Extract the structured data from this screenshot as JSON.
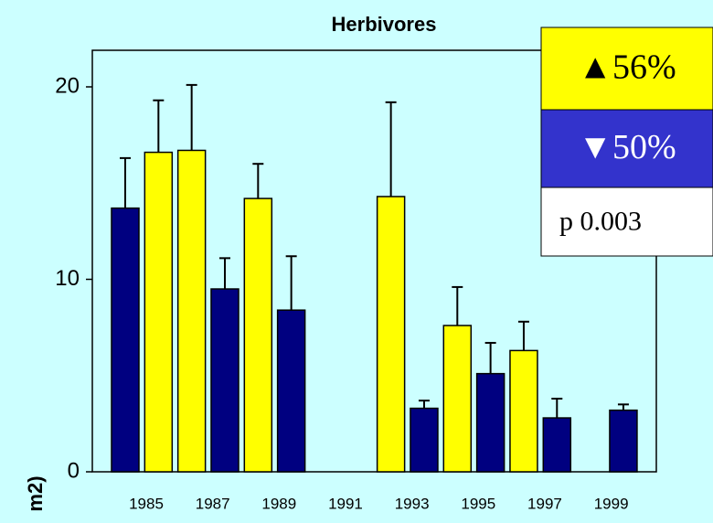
{
  "chart_data": {
    "type": "bar",
    "title": "Herbivores",
    "ylabel": "m2)",
    "categories": [
      "1985",
      null,
      "1987",
      null,
      "1989",
      null,
      "1991",
      null,
      "1993",
      null,
      "1995",
      null,
      "1997",
      null,
      "1999",
      null
    ],
    "values": [
      13.7,
      16.6,
      16.7,
      9.5,
      14.2,
      8.4,
      null,
      null,
      14.3,
      3.3,
      7.6,
      5.1,
      6.3,
      2.8,
      null,
      3.2
    ],
    "errors": [
      2.6,
      2.7,
      3.4,
      1.6,
      1.8,
      2.8,
      null,
      null,
      4.9,
      0.4,
      2.0,
      1.6,
      1.5,
      1.0,
      null,
      0.3
    ],
    "colors": [
      "#000080",
      "#ffff00",
      "#ffff00",
      "#000080",
      "#ffff00",
      "#000080",
      null,
      null,
      "#ffff00",
      "#000080",
      "#ffff00",
      "#000080",
      "#ffff00",
      "#000080",
      null,
      "#000080"
    ],
    "ylim": [
      0,
      21.9
    ],
    "yticks": [
      0,
      10,
      20
    ],
    "annotations": [
      {
        "text": "▲56%",
        "color": "#ffff00"
      },
      {
        "text": "▼50%",
        "color": "#3333cc"
      },
      {
        "text": "p  0.003",
        "color": "#ffffff"
      }
    ]
  }
}
